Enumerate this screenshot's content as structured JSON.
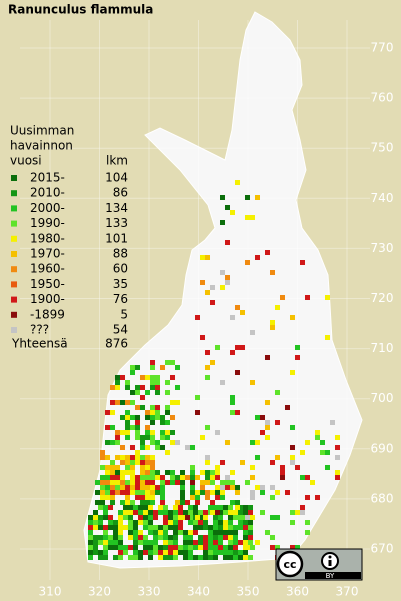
{
  "title": "Ranunculus flammula",
  "legend": {
    "heading": [
      "Uusimman",
      "havainnon",
      "vuosi"
    ],
    "count_heading": "lkm",
    "rows": [
      {
        "label": "2015-",
        "count": 104,
        "color": "#0b6e0b"
      },
      {
        "label": "2010-",
        "count": 86,
        "color": "#149614"
      },
      {
        "label": "2000-",
        "count": 134,
        "color": "#22c322"
      },
      {
        "label": "1990-",
        "count": 133,
        "color": "#5ee32a"
      },
      {
        "label": "1980-",
        "count": 101,
        "color": "#f5f000"
      },
      {
        "label": "1970-",
        "count": 88,
        "color": "#f5c000"
      },
      {
        "label": "1960-",
        "count": 60,
        "color": "#f08a10"
      },
      {
        "label": "1950-",
        "count": 35,
        "color": "#e85a10"
      },
      {
        "label": "1900-",
        "count": 76,
        "color": "#d01818"
      },
      {
        "label": "-1899",
        "count": 5,
        "color": "#8a0c0c"
      },
      {
        "label": "???",
        "count": 54,
        "color": "#c4c4c4"
      }
    ],
    "total_label": "Yhteensä",
    "total": 876
  },
  "grid": {
    "x_labels": [
      310,
      320,
      330,
      340,
      350,
      360,
      370
    ],
    "y_labels": [
      770,
      760,
      750,
      740,
      730,
      720,
      710,
      700,
      690,
      680,
      670
    ]
  },
  "license": {
    "cc": "cc",
    "by": "BY"
  }
}
